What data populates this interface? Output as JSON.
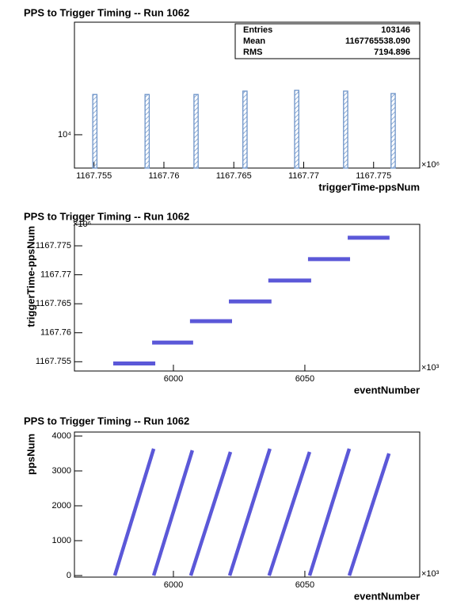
{
  "chart_data": [
    {
      "type": "histogram",
      "title": "PPS to Trigger Timing -- Run 1062",
      "x_label": "triggerTime-ppsNum",
      "x_multiplier": "×10⁶",
      "color": "#6c93c8",
      "x": [
        1167.75506,
        1167.7588,
        1167.7623,
        1167.7658,
        1167.7695,
        1167.773,
        1167.7764
      ],
      "values": [
        14600,
        14600,
        14600,
        15070,
        15180,
        15070,
        14730
      ],
      "bin_width": 0.0003,
      "xlim": [
        1167.7536,
        1167.7783
      ],
      "xticks": [
        1167.755,
        1167.76,
        1167.765,
        1167.77,
        1167.775
      ],
      "ylim": [
        7310,
        28810
      ],
      "yticks": [
        {
          "value": 10000,
          "label": "10⁴"
        }
      ],
      "log_y": true,
      "stats": [
        {
          "label": "Entries",
          "value": "103146"
        },
        {
          "label": "Mean",
          "value": "1167765538.090"
        },
        {
          "label": "RMS",
          "value": "7194.896"
        }
      ]
    },
    {
      "type": "hsegments",
      "title": "PPS to Trigger Timing -- Run 1062",
      "x_label": "eventNumber",
      "y_label": "triggerTime-ppsNum",
      "x_multiplier": "×10³",
      "y_multiplier": "×10⁶",
      "color": "#5b58d8",
      "x_start": [
        5977.1,
        5991.9,
        6006.3,
        6021.1,
        6036.1,
        6051.2,
        6066.3
      ],
      "x_end": [
        5993.1,
        6007.5,
        6022.3,
        6037.3,
        6052.4,
        6067.2,
        6082.2
      ],
      "values": [
        1167.7547,
        1167.7583,
        1167.762,
        1167.7654,
        1167.769,
        1167.7727,
        1167.7764
      ],
      "xlim": [
        5962.35,
        6093.7
      ],
      "xticks": [
        6000,
        6050
      ],
      "ylim": [
        1167.7534,
        1167.7787
      ],
      "yticks": [
        1167.755,
        1167.76,
        1167.765,
        1167.77,
        1167.775
      ]
    },
    {
      "type": "ramps",
      "title": "PPS to Trigger Timing -- Run 1062",
      "x_label": "eventNumber",
      "y_label": "ppsNum",
      "x_multiplier": "×10³",
      "color": "#5b58d8",
      "x_start": [
        5977.7,
        5992.5,
        6006.6,
        6021.4,
        6036.4,
        6051.8,
        6066.9
      ],
      "x_end": [
        5992.5,
        6007.2,
        6021.7,
        6036.7,
        6051.8,
        6066.9,
        6082.0
      ],
      "y_start": [
        0,
        0,
        0,
        0,
        0,
        0,
        0
      ],
      "values": [
        3636,
        3590,
        3545,
        3636,
        3545,
        3636,
        3500
      ],
      "xlim": [
        5962.35,
        6093.7
      ],
      "xticks": [
        6000,
        6050
      ],
      "ylim": [
        -45,
        4114
      ],
      "yticks": [
        0,
        1000,
        2000,
        3000,
        4000
      ]
    }
  ]
}
